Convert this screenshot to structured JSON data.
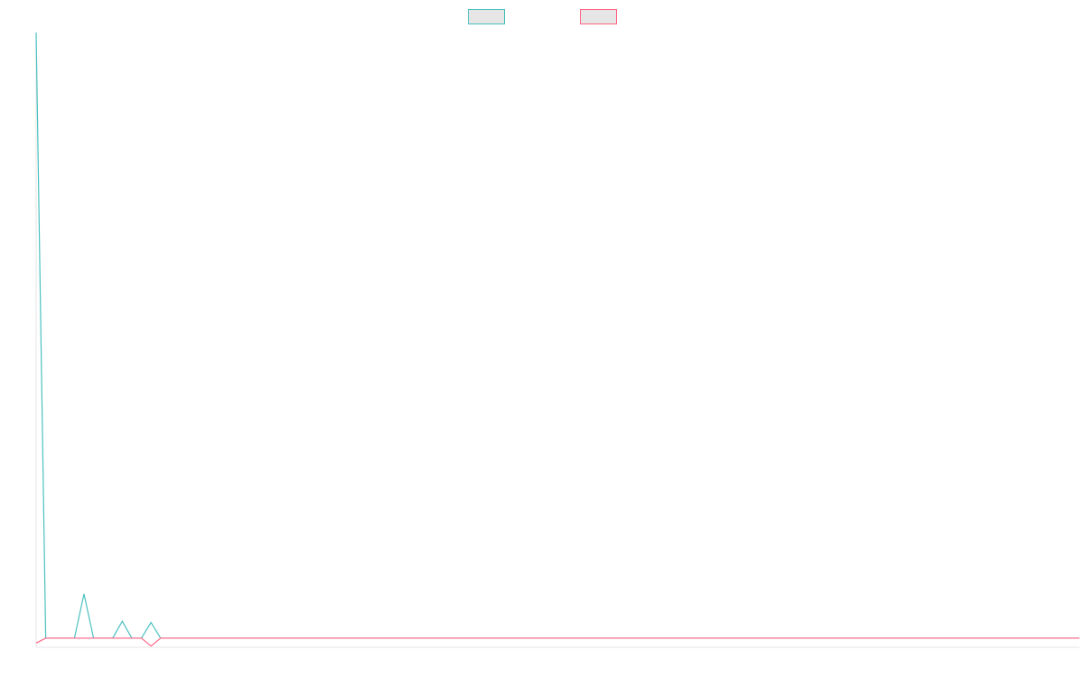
{
  "chart_data": {
    "type": "line",
    "title": "",
    "xlabel": "",
    "ylabel": "",
    "legend": {
      "placement": "top-center",
      "entries": [
        {
          "label": "",
          "color": "#4bc0c0",
          "fill": "#e6e6e6"
        },
        {
          "label": "",
          "color": "#ff6384",
          "fill": "#e6e6e6"
        }
      ]
    },
    "x_count": 110,
    "ylim": [
      -1.5,
      100
    ],
    "grid": false,
    "series": [
      {
        "color": "#4bc0c0",
        "points": [
          [
            0,
            100
          ],
          [
            1,
            0
          ],
          [
            2,
            0
          ],
          [
            3,
            0
          ],
          [
            4,
            0
          ],
          [
            5,
            7.3
          ],
          [
            6,
            0
          ],
          [
            7,
            0
          ],
          [
            8,
            0
          ],
          [
            9,
            2.8
          ],
          [
            10,
            0
          ],
          [
            11,
            0
          ],
          [
            12,
            2.6
          ],
          [
            13,
            0
          ],
          [
            109,
            0
          ]
        ]
      },
      {
        "color": "#ff6384",
        "points": [
          [
            0,
            -0.8
          ],
          [
            1,
            0
          ],
          [
            2,
            0
          ],
          [
            11,
            0
          ],
          [
            12,
            -1.3
          ],
          [
            13,
            0
          ],
          [
            109,
            0
          ]
        ]
      }
    ]
  }
}
